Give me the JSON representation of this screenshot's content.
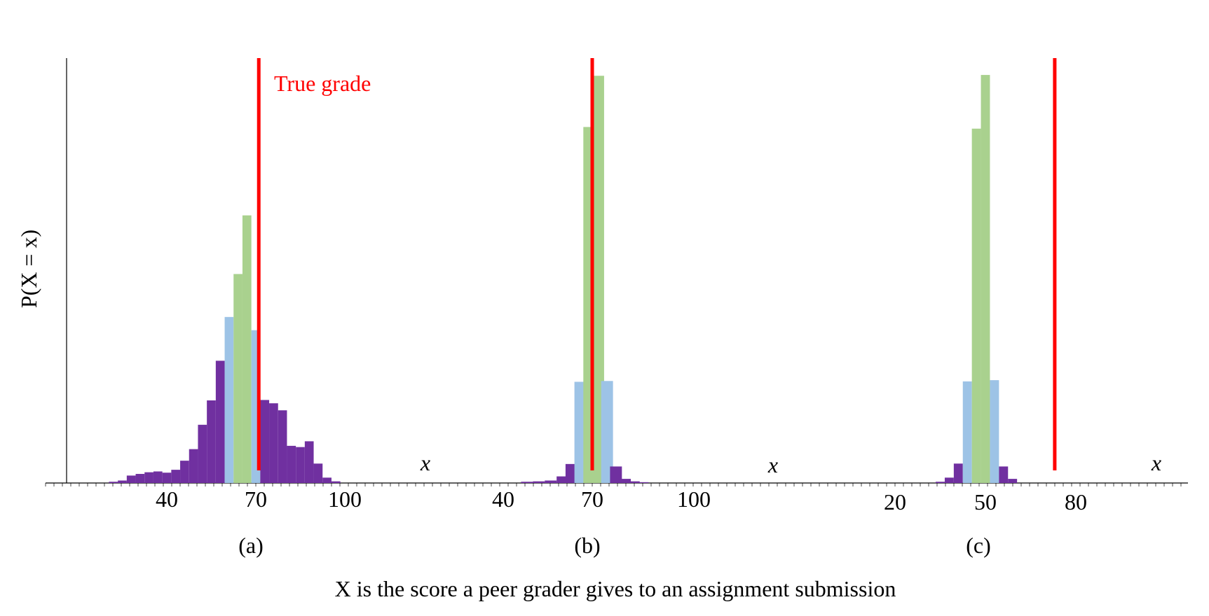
{
  "figure": {
    "ylabel": "P(X = x)",
    "xlabel": "X is the score a peer grader gives to an assignment submission",
    "annotation": "True grade",
    "x_axis_symbol": "x"
  },
  "colors": {
    "axis": "#000000",
    "tail": "#7030a0",
    "near": "#9dc3e6",
    "center": "#a9d18e",
    "true_grade": "#ff0000"
  },
  "chart_data": [
    {
      "type": "bar",
      "panel_label": "(a)",
      "xticks": [
        40,
        70,
        100
      ],
      "true_grade": 71,
      "ymax": 1.0,
      "bins": [
        {
          "x": 22,
          "p": 0.003,
          "c": "tail"
        },
        {
          "x": 25,
          "p": 0.006,
          "c": "tail"
        },
        {
          "x": 28,
          "p": 0.018,
          "c": "tail"
        },
        {
          "x": 31,
          "p": 0.022,
          "c": "tail"
        },
        {
          "x": 34,
          "p": 0.026,
          "c": "tail"
        },
        {
          "x": 37,
          "p": 0.028,
          "c": "tail"
        },
        {
          "x": 40,
          "p": 0.025,
          "c": "tail"
        },
        {
          "x": 43,
          "p": 0.032,
          "c": "tail"
        },
        {
          "x": 46,
          "p": 0.054,
          "c": "tail"
        },
        {
          "x": 49,
          "p": 0.082,
          "c": "tail"
        },
        {
          "x": 52,
          "p": 0.141,
          "c": "tail"
        },
        {
          "x": 55,
          "p": 0.2,
          "c": "tail"
        },
        {
          "x": 58,
          "p": 0.296,
          "c": "tail"
        },
        {
          "x": 61,
          "p": 0.402,
          "c": "near"
        },
        {
          "x": 64,
          "p": 0.506,
          "c": "center"
        },
        {
          "x": 67,
          "p": 0.648,
          "c": "center"
        },
        {
          "x": 70,
          "p": 0.37,
          "c": "near"
        },
        {
          "x": 73,
          "p": 0.201,
          "c": "tail"
        },
        {
          "x": 76,
          "p": 0.193,
          "c": "tail"
        },
        {
          "x": 79,
          "p": 0.176,
          "c": "tail"
        },
        {
          "x": 82,
          "p": 0.09,
          "c": "tail"
        },
        {
          "x": 85,
          "p": 0.087,
          "c": "tail"
        },
        {
          "x": 88,
          "p": 0.101,
          "c": "tail"
        },
        {
          "x": 91,
          "p": 0.047,
          "c": "tail"
        },
        {
          "x": 94,
          "p": 0.013,
          "c": "tail"
        },
        {
          "x": 97,
          "p": 0.004,
          "c": "tail"
        }
      ]
    },
    {
      "type": "bar",
      "panel_label": "(b)",
      "xticks": [
        40,
        70,
        100
      ],
      "true_grade": 70,
      "ymax": 1.0,
      "bins": [
        {
          "x": 48,
          "p": 0.003,
          "c": "tail"
        },
        {
          "x": 52,
          "p": 0.004,
          "c": "tail"
        },
        {
          "x": 56,
          "p": 0.006,
          "c": "tail"
        },
        {
          "x": 60,
          "p": 0.016,
          "c": "tail"
        },
        {
          "x": 63,
          "p": 0.046,
          "c": "tail"
        },
        {
          "x": 66,
          "p": 0.245,
          "c": "near"
        },
        {
          "x": 69,
          "p": 0.862,
          "c": "center"
        },
        {
          "x": 72,
          "p": 0.986,
          "c": "center"
        },
        {
          "x": 75,
          "p": 0.247,
          "c": "near"
        },
        {
          "x": 78,
          "p": 0.04,
          "c": "tail"
        },
        {
          "x": 81,
          "p": 0.01,
          "c": "tail"
        },
        {
          "x": 84,
          "p": 0.004,
          "c": "tail"
        },
        {
          "x": 87,
          "p": 0.002,
          "c": "tail"
        }
      ]
    },
    {
      "type": "bar",
      "panel_label": "(c)",
      "xticks": [
        20,
        50,
        80
      ],
      "true_grade": 73,
      "ymax": 1.0,
      "bins": [
        {
          "x": 35,
          "p": 0.003,
          "c": "tail"
        },
        {
          "x": 38,
          "p": 0.013,
          "c": "tail"
        },
        {
          "x": 41,
          "p": 0.047,
          "c": "tail"
        },
        {
          "x": 44,
          "p": 0.246,
          "c": "near"
        },
        {
          "x": 47,
          "p": 0.858,
          "c": "center"
        },
        {
          "x": 50,
          "p": 0.988,
          "c": "center"
        },
        {
          "x": 53,
          "p": 0.249,
          "c": "near"
        },
        {
          "x": 56,
          "p": 0.04,
          "c": "tail"
        },
        {
          "x": 59,
          "p": 0.01,
          "c": "tail"
        }
      ]
    }
  ]
}
